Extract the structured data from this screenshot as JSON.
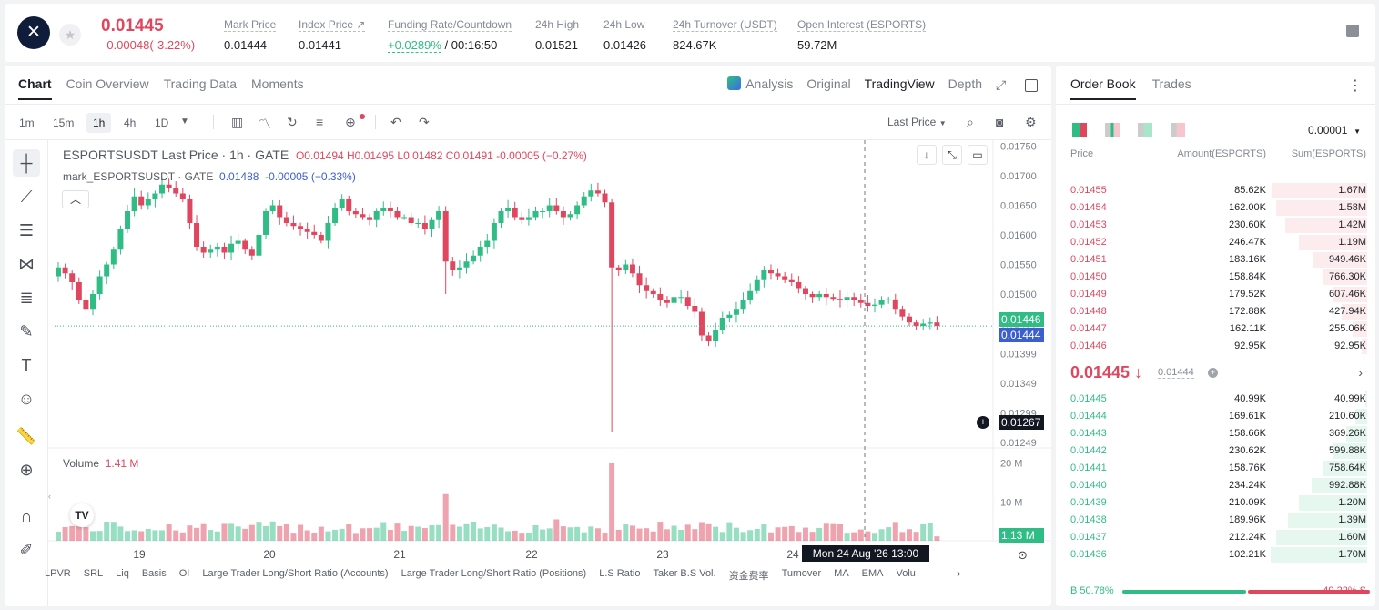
{
  "ticker": {
    "last_price": "0.01445",
    "change": "-0.00048(-3.22%)",
    "stats": [
      {
        "label": "Mark Price",
        "value": "0.01444"
      },
      {
        "label": "Index Price ↗",
        "value": "0.01441"
      },
      {
        "label": "Funding Rate/Countdown",
        "value_a": "+0.0289%",
        "value_b": "/ 00:16:50"
      },
      {
        "label": "24h High",
        "value": "0.01521"
      },
      {
        "label": "24h Low",
        "value": "0.01426"
      },
      {
        "label": "24h Turnover (USDT)",
        "value": "824.67K"
      },
      {
        "label": "Open Interest (ESPORTS)",
        "value": "59.72M"
      }
    ]
  },
  "chart_tabs": [
    "Chart",
    "Coin Overview",
    "Trading Data",
    "Moments"
  ],
  "view_tabs": [
    "Analysis",
    "Original",
    "TradingView",
    "Depth"
  ],
  "timeframes": [
    "1m",
    "15m",
    "1h",
    "4h",
    "1D"
  ],
  "price_mode": "Last Price",
  "legend": {
    "symbol": "ESPORTSUSDT Last Price · 1h · GATE",
    "ohlc": "O0.01494  H0.01495  L0.01482  C0.01491  -0.00005 (−0.27%)",
    "mark_name": "mark_ESPORTSUSDT · GATE",
    "mark_val": "0.01488",
    "mark_chg": "-0.00005 (−0.33%)",
    "volume_label": "Volume",
    "volume_val": "1.41 M"
  },
  "price_tags": {
    "last": "0.01446",
    "mark": "0.01444",
    "cross": "0.01267",
    "volume": "1.13 M"
  },
  "crosshair_date": "Mon 24 Aug '26   13:00",
  "bottom_indicators": [
    "LPVR",
    "SRL",
    "Liq",
    "Basis",
    "OI",
    "Large Trader Long/Short Ratio (Accounts)",
    "Large Trader Long/Short Ratio (Positions)",
    "L.S Ratio",
    "Taker B.S Vol.",
    "资金费率",
    "Turnover",
    "MA",
    "EMA",
    "Volu"
  ],
  "chart_data": {
    "type": "candlestick",
    "price_axis": [
      "0.01750",
      "0.01700",
      "0.01650",
      "0.01600",
      "0.01550",
      "0.01500",
      "0.01450",
      "0.01399",
      "0.01349",
      "0.01299",
      "0.01249"
    ],
    "volume_axis": [
      "20 M",
      "10 M"
    ],
    "x_ticks": [
      "19",
      "20",
      "21",
      "22",
      "23",
      "24"
    ],
    "ylim": [
      0.0124,
      0.0176
    ],
    "closes": [
      0.01545,
      0.01535,
      0.0152,
      0.0149,
      0.01475,
      0.015,
      0.0153,
      0.0155,
      0.01575,
      0.0161,
      0.0164,
      0.01665,
      0.0165,
      0.0166,
      0.0167,
      0.01685,
      0.0168,
      0.0167,
      0.0166,
      0.0162,
      0.0158,
      0.0157,
      0.01575,
      0.0158,
      0.0157,
      0.01585,
      0.0159,
      0.01575,
      0.01565,
      0.016,
      0.0164,
      0.0165,
      0.0163,
      0.0162,
      0.01615,
      0.0161,
      0.01605,
      0.016,
      0.0159,
      0.0162,
      0.01645,
      0.0166,
      0.0164,
      0.01635,
      0.0163,
      0.01625,
      0.0164,
      0.01645,
      0.0164,
      0.0163,
      0.0163,
      0.0162,
      0.0162,
      0.0161,
      0.01625,
      0.0164,
      0.01555,
      0.0154,
      0.01545,
      0.01555,
      0.01565,
      0.0158,
      0.0159,
      0.0162,
      0.0164,
      0.01645,
      0.0163,
      0.01625,
      0.0163,
      0.0164,
      0.0164,
      0.0165,
      0.0164,
      0.0163,
      0.01635,
      0.0165,
      0.01665,
      0.01675,
      0.0167,
      0.01655,
      0.01545,
      0.0154,
      0.0155,
      0.01535,
      0.01515,
      0.01505,
      0.015,
      0.0149,
      0.01485,
      0.01495,
      0.01495,
      0.0148,
      0.0147,
      0.0143,
      0.0142,
      0.0144,
      0.0146,
      0.01465,
      0.01475,
      0.0149,
      0.01505,
      0.01525,
      0.0154,
      0.01535,
      0.0153,
      0.01525,
      0.0152,
      0.0151,
      0.015,
      0.01495,
      0.015,
      0.01495,
      0.01492,
      0.0149,
      0.01495,
      0.0149,
      0.01485,
      0.0148,
      0.01482,
      0.0149,
      0.01491,
      0.01475,
      0.01462,
      0.01452,
      0.01446,
      0.0145,
      0.01452,
      0.01446
    ]
  },
  "orderbook": {
    "tabs": [
      "Order Book",
      "Trades"
    ],
    "precision": "0.00001",
    "headers": {
      "price": "Price",
      "amount": "Amount(ESPORTS)",
      "sum": "Sum(ESPORTS)"
    },
    "asks": [
      {
        "price": "0.01455",
        "amount": "85.62K",
        "sum": "1.67M",
        "depth": 0.99
      },
      {
        "price": "0.01454",
        "amount": "162.00K",
        "sum": "1.58M",
        "depth": 0.94
      },
      {
        "price": "0.01453",
        "amount": "230.60K",
        "sum": "1.42M",
        "depth": 0.85
      },
      {
        "price": "0.01452",
        "amount": "246.47K",
        "sum": "1.19M",
        "depth": 0.71
      },
      {
        "price": "0.01451",
        "amount": "183.16K",
        "sum": "949.46K",
        "depth": 0.57
      },
      {
        "price": "0.01450",
        "amount": "158.84K",
        "sum": "766.30K",
        "depth": 0.46
      },
      {
        "price": "0.01449",
        "amount": "179.52K",
        "sum": "607.46K",
        "depth": 0.36
      },
      {
        "price": "0.01448",
        "amount": "172.88K",
        "sum": "427.94K",
        "depth": 0.26
      },
      {
        "price": "0.01447",
        "amount": "162.11K",
        "sum": "255.06K",
        "depth": 0.15
      },
      {
        "price": "0.01446",
        "amount": "92.95K",
        "sum": "92.95K",
        "depth": 0.06
      }
    ],
    "mid_price": "0.01445 ↓",
    "mid_mark": "0.01444",
    "bids": [
      {
        "price": "0.01445",
        "amount": "40.99K",
        "sum": "40.99K",
        "depth": 0.02
      },
      {
        "price": "0.01444",
        "amount": "169.61K",
        "sum": "210.60K",
        "depth": 0.12
      },
      {
        "price": "0.01443",
        "amount": "158.66K",
        "sum": "369.26K",
        "depth": 0.22
      },
      {
        "price": "0.01442",
        "amount": "230.62K",
        "sum": "599.88K",
        "depth": 0.35
      },
      {
        "price": "0.01441",
        "amount": "158.76K",
        "sum": "758.64K",
        "depth": 0.45
      },
      {
        "price": "0.01440",
        "amount": "234.24K",
        "sum": "992.88K",
        "depth": 0.58
      },
      {
        "price": "0.01439",
        "amount": "210.09K",
        "sum": "1.20M",
        "depth": 0.71
      },
      {
        "price": "0.01438",
        "amount": "189.96K",
        "sum": "1.39M",
        "depth": 0.82
      },
      {
        "price": "0.01437",
        "amount": "212.24K",
        "sum": "1.60M",
        "depth": 0.94
      },
      {
        "price": "0.01436",
        "amount": "102.21K",
        "sum": "1.70M",
        "depth": 1.0
      }
    ],
    "buy_ratio_label": "B 50.78%",
    "sell_ratio_label": "49.22% S",
    "buy_ratio": 0.5078
  },
  "colors": {
    "up": "#2fbd85",
    "down": "#e0475e"
  }
}
